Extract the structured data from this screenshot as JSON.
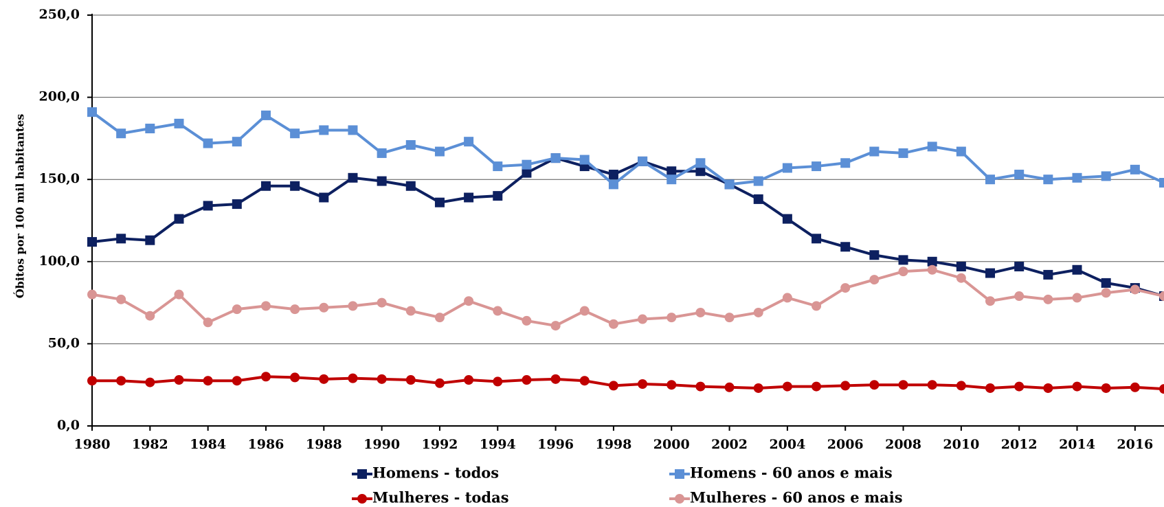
{
  "chart_data": {
    "type": "line",
    "y_label": "Óbitos por 100 mil habitantes",
    "x": [
      1980,
      1981,
      1982,
      1983,
      1984,
      1985,
      1986,
      1987,
      1988,
      1989,
      1990,
      1991,
      1992,
      1993,
      1994,
      1995,
      1996,
      1997,
      1998,
      1999,
      2000,
      2001,
      2002,
      2003,
      2004,
      2005,
      2006,
      2007,
      2008,
      2009,
      2010,
      2011,
      2012,
      2013,
      2014,
      2015,
      2016,
      2017
    ],
    "xlim": [
      1980,
      2017
    ],
    "xticks": [
      1980,
      1982,
      1984,
      1986,
      1988,
      1990,
      1992,
      1994,
      1996,
      1998,
      2000,
      2002,
      2004,
      2006,
      2008,
      2010,
      2012,
      2014,
      2016
    ],
    "ylim": [
      0,
      250
    ],
    "yticks": [
      {
        "value": 0,
        "label": "0,0"
      },
      {
        "value": 50,
        "label": "50,0"
      },
      {
        "value": 100,
        "label": "100,0"
      },
      {
        "value": 150,
        "label": "150,0"
      },
      {
        "value": 200,
        "label": "200,0"
      },
      {
        "value": 250,
        "label": "250,0"
      }
    ],
    "grid": true,
    "legend": "bottom",
    "series": [
      {
        "name": "Homens - todos",
        "color": "#0d2060",
        "marker": "square",
        "values": [
          112,
          114,
          113,
          126,
          134,
          135,
          146,
          146,
          139,
          151,
          149,
          146,
          136,
          139,
          140,
          154,
          163,
          158,
          153,
          161,
          155,
          155,
          147,
          138,
          126,
          114,
          109,
          104,
          101,
          100,
          97,
          93,
          97,
          92,
          95,
          87,
          84,
          79
        ]
      },
      {
        "name": "Homens - 60 anos e mais",
        "color": "#5b8fd6",
        "marker": "square",
        "values": [
          191,
          178,
          181,
          184,
          172,
          173,
          189,
          178,
          180,
          180,
          166,
          171,
          167,
          173,
          158,
          159,
          163,
          162,
          147,
          161,
          150,
          160,
          147,
          149,
          157,
          158,
          160,
          167,
          166,
          170,
          167,
          150,
          153,
          150,
          151,
          152,
          156,
          148
        ]
      },
      {
        "name": "Mulheres - todas",
        "color": "#c00000",
        "marker": "circle",
        "values": [
          27.5,
          27.5,
          26.5,
          28,
          27.5,
          27.5,
          30,
          29.5,
          28.5,
          29,
          28.5,
          28,
          26,
          28,
          27,
          28,
          28.5,
          27.5,
          24.5,
          25.5,
          25,
          24,
          23.5,
          23,
          24,
          24,
          24.5,
          25,
          25,
          25,
          24.5,
          23,
          24,
          23,
          24,
          23,
          23.5,
          22.5
        ]
      },
      {
        "name": "Mulheres - 60 anos e mais",
        "color": "#d99594",
        "marker": "circle",
        "values": [
          80,
          77,
          67,
          80,
          63,
          71,
          73,
          71,
          72,
          73,
          75,
          70,
          66,
          76,
          70,
          64,
          61,
          70,
          62,
          65,
          66,
          69,
          66,
          69,
          78,
          73,
          84,
          89,
          94,
          95,
          90,
          76,
          79,
          77,
          78,
          81,
          83,
          79
        ]
      }
    ]
  }
}
